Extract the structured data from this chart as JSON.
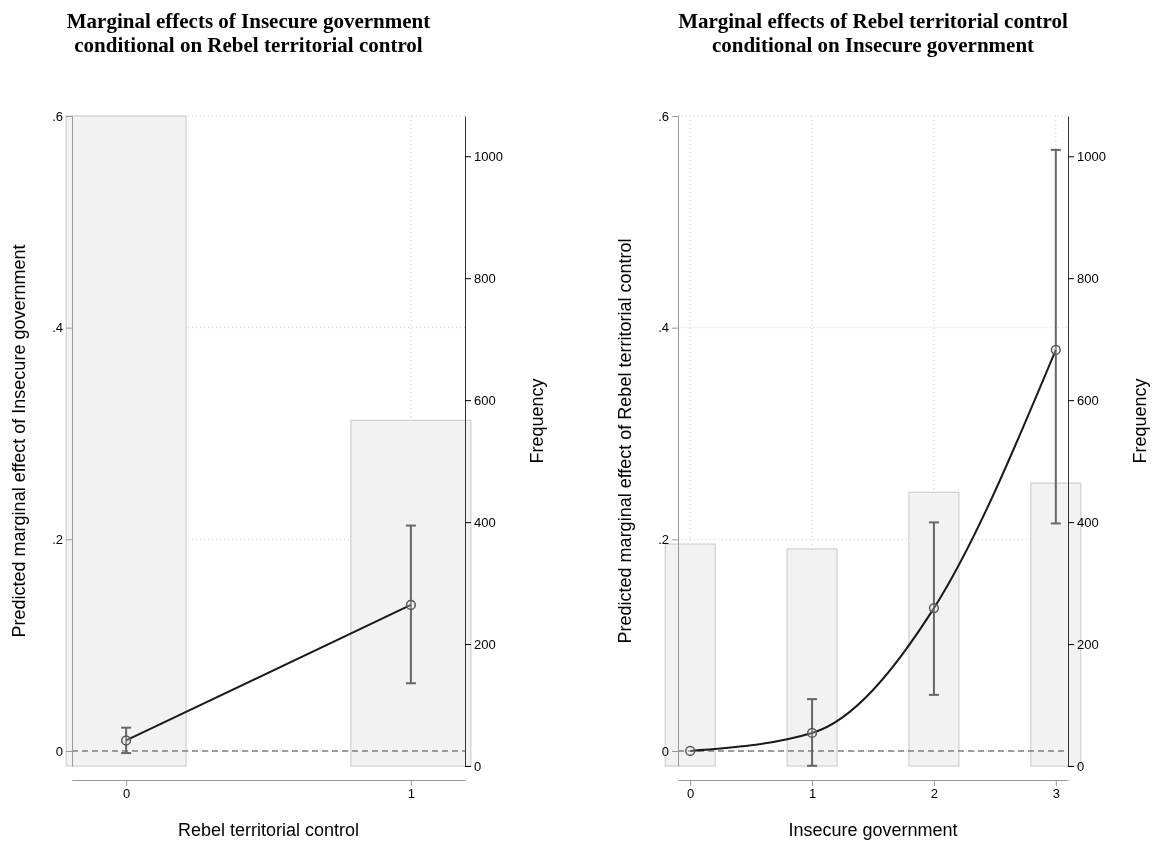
{
  "chart_data": [
    {
      "type": "line",
      "title": "Marginal effects of Insecure government\nconditional on Rebel territorial control",
      "xlabel": "Rebel territorial control",
      "ylabel": "Predicted marginal effect of Insecure government",
      "y2label": "Frequency",
      "categories": [
        "0",
        "1"
      ],
      "ylim": [
        -0.0142,
        0.6
      ],
      "yticks": [
        0,
        {
          "value": 0.2,
          "label": ".2"
        },
        {
          "value": 0.4,
          "label": ".4"
        },
        {
          "value": 0.6,
          "label": ".6"
        }
      ],
      "y2lim": [
        0,
        1066
      ],
      "y2ticks": [
        0,
        200,
        400,
        600,
        800,
        1000
      ],
      "grid": true,
      "marker": "circle",
      "ref_lines": [
        {
          "axis": "y",
          "value": 0,
          "line_style": "dashed",
          "color": "#808080"
        }
      ],
      "series": [
        {
          "type": "bar",
          "axis": "y2",
          "color": "#f2f2f2",
          "values": [
            1066,
            567
          ]
        },
        {
          "color": "#1a1a1a",
          "values": [
            0.01,
            0.138
          ],
          "errors": [
            [
              -0.002,
              0.022
            ],
            [
              0.064,
              0.213
            ]
          ]
        }
      ]
    },
    {
      "type": "line",
      "title": "Marginal effects of Rebel territorial control\nconditional on Insecure government",
      "xlabel": "Insecure government",
      "ylabel": "Predicted marginal effect of Rebel territorial control",
      "y2label": "Frequency",
      "categories": [
        "0",
        "1",
        "2",
        "3"
      ],
      "ylim": [
        -0.0142,
        0.6
      ],
      "yticks": [
        0,
        {
          "value": 0.2,
          "label": ".2"
        },
        {
          "value": 0.4,
          "label": ".4"
        },
        {
          "value": 0.6,
          "label": ".6"
        }
      ],
      "y2lim": [
        0,
        1066
      ],
      "y2ticks": [
        0,
        200,
        400,
        600,
        800,
        1000
      ],
      "grid": true,
      "marker": "circle",
      "ref_lines": [
        {
          "axis": "y",
          "value": 0,
          "line_style": "dashed",
          "color": "#808080"
        }
      ],
      "series": [
        {
          "type": "bar",
          "axis": "y2",
          "color": "#f2f2f2",
          "values": [
            364,
            356,
            449,
            464
          ]
        },
        {
          "color": "#1a1a1a",
          "values": [
            0,
            0.017,
            0.135,
            0.379
          ],
          "errors": [
            null,
            [
              -0.014,
              0.049
            ],
            [
              0.053,
              0.216
            ],
            [
              0.215,
              0.568
            ]
          ]
        }
      ]
    }
  ]
}
